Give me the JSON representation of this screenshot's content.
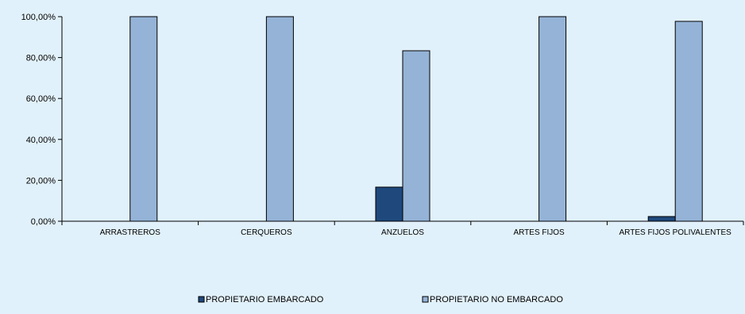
{
  "chart_data": {
    "type": "bar",
    "title": "",
    "xlabel": "",
    "ylabel": "",
    "categories": [
      "ARRASTREROS",
      "CERQUEROS",
      "ANZUELOS",
      "ARTES FIJOS",
      "ARTES FIJOS POLIVALENTES"
    ],
    "series": [
      {
        "name": "PROPIETARIO EMBARCADO",
        "color": "#1f497d",
        "values": [
          0,
          0,
          16.67,
          0,
          2.3
        ]
      },
      {
        "name": "PROPIETARIO NO EMBARCADO",
        "color": "#95b3d7",
        "values": [
          100,
          100,
          83.33,
          100,
          97.7
        ]
      }
    ],
    "ylim": [
      0,
      100
    ],
    "yticks": [
      0,
      20,
      40,
      60,
      80,
      100
    ],
    "ytick_labels": [
      "0,00%",
      "20,00%",
      "40,00%",
      "60,00%",
      "80,00%",
      "100,00%"
    ],
    "grid": false,
    "legend_position": "bottom",
    "background_color": "#e1f1fb"
  }
}
